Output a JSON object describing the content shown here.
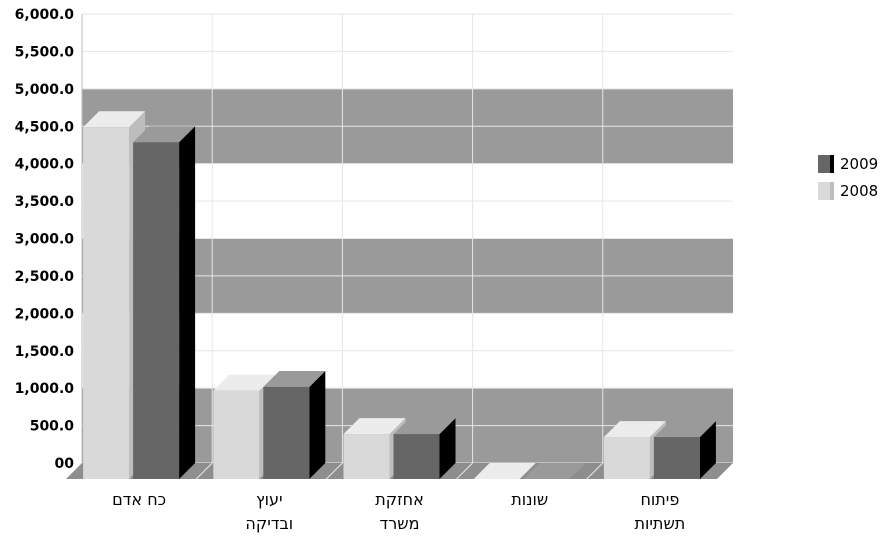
{
  "chart_data": {
    "type": "bar",
    "subtype": "3d-clustered-column",
    "title": "",
    "categories": [
      "כח אדם",
      "יעוץ ובדיקה",
      "אחזקת משרד",
      "שונות",
      "פיתוח תשתיות"
    ],
    "category_lines": [
      [
        "כח אדם"
      ],
      [
        "יעוץ",
        "ובדיקה"
      ],
      [
        "אחזקת",
        "משרד"
      ],
      [
        "שונות"
      ],
      [
        "פיתוח",
        "תשתיות"
      ]
    ],
    "series": [
      {
        "name": "2008",
        "values": [
          4700,
          1180,
          600,
          0,
          560
        ],
        "color": "#d9d9d9"
      },
      {
        "name": "2009",
        "values": [
          4500,
          1230,
          600,
          0,
          560
        ],
        "color": "#666666"
      }
    ],
    "legend_order": [
      "2009",
      "2008"
    ],
    "ylim": [
      0,
      6000
    ],
    "y_ticks": [
      "00",
      "500.0",
      "1,000.0",
      "1,500.0",
      "2,000.0",
      "2,500.0",
      "3,000.0",
      "3,500.0",
      "4,000.0",
      "4,500.0",
      "5,000.0",
      "5,500.0",
      "6,000.0"
    ],
    "y_tick_values": [
      0,
      500,
      1000,
      1500,
      2000,
      2500,
      3000,
      3500,
      4000,
      4500,
      5000,
      5500,
      6000
    ],
    "band_color": "#9a9a9a",
    "grid": true,
    "legend_position": "right"
  }
}
